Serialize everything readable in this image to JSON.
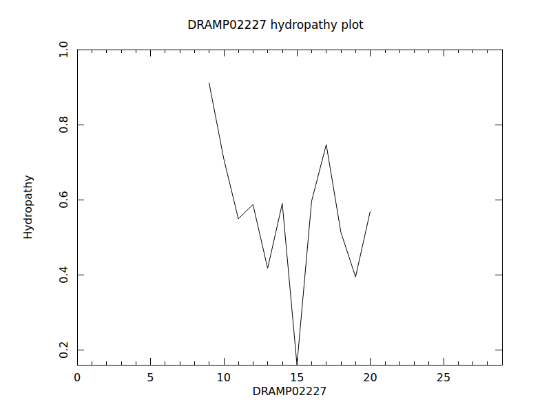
{
  "chart_data": {
    "type": "line",
    "title": "DRAMP02227 hydropathy plot",
    "x_label": "DRAMP02227",
    "y_label": "Hydropathy",
    "x": [
      9,
      10,
      11,
      12,
      13,
      14,
      15,
      16,
      17,
      18,
      19,
      20
    ],
    "values": [
      0.912,
      0.71,
      0.549,
      0.587,
      0.417,
      0.59,
      0.16,
      0.596,
      0.747,
      0.513,
      0.394,
      0.569
    ],
    "color": "#000000",
    "xlim": [
      0,
      29
    ],
    "xticks": [
      0,
      5,
      10,
      15,
      20,
      25
    ],
    "ylim": [
      0.16,
      1
    ],
    "yticks": [
      0.2,
      0.4,
      0.6,
      0.8,
      {
        "value": 1,
        "label": "1.0"
      }
    ],
    "grid": false
  }
}
